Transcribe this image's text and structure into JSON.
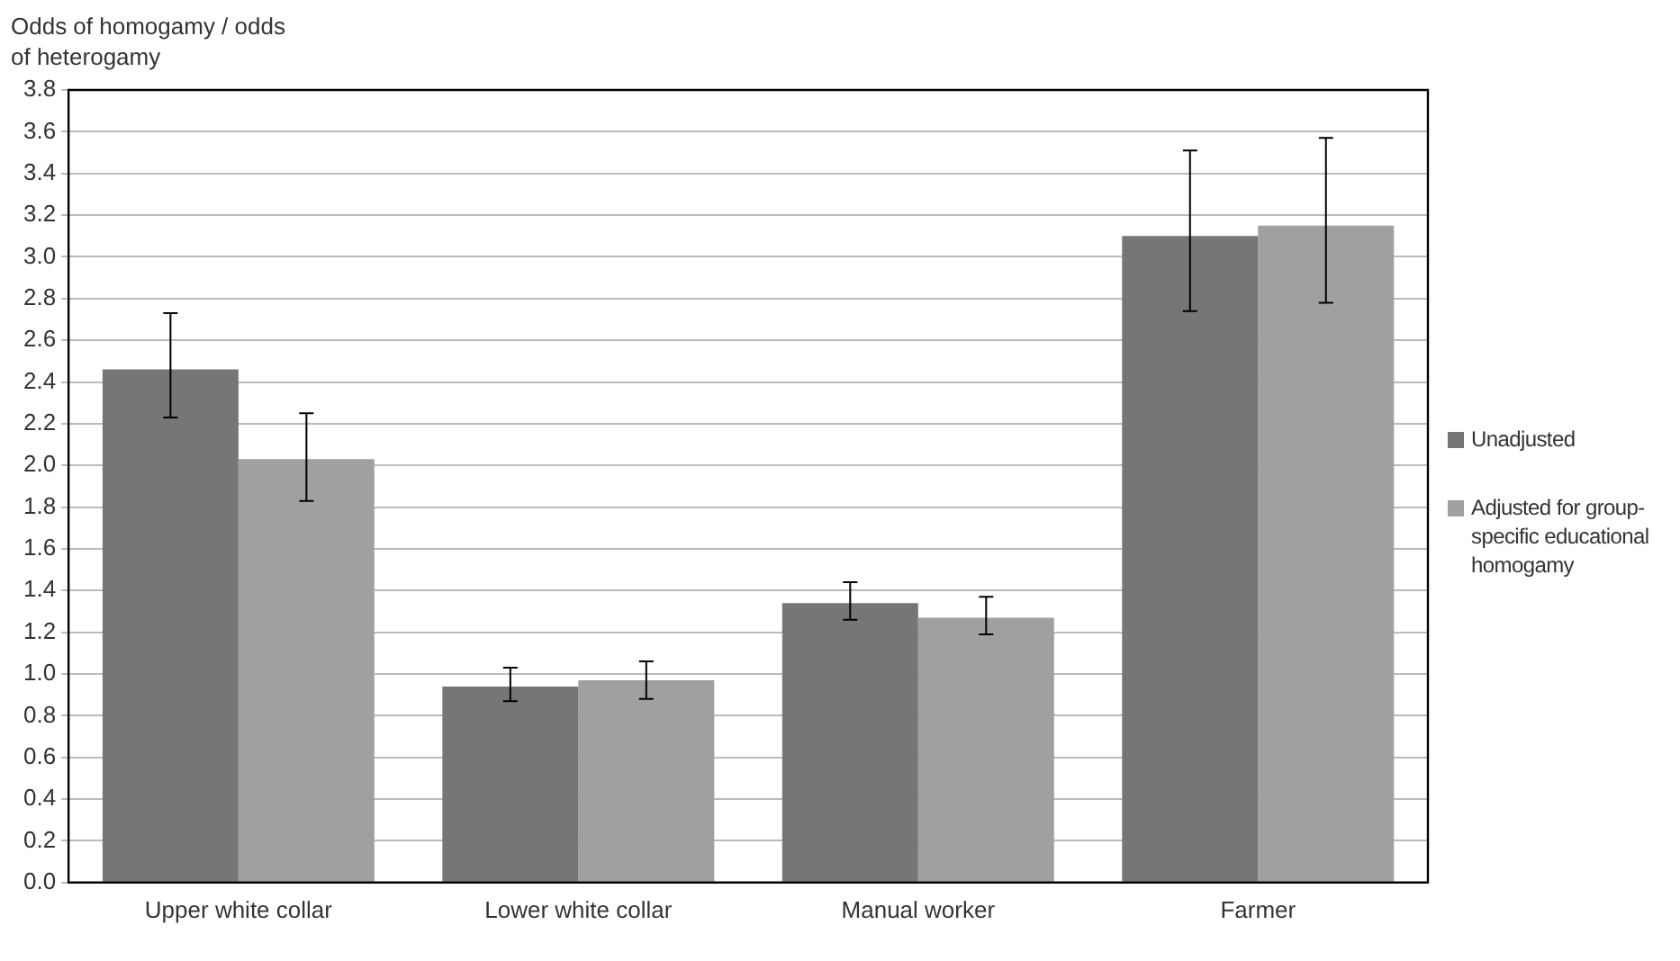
{
  "chart_data": {
    "type": "bar",
    "ylabel": "Odds of homogamy / odds of heterogamy",
    "categories": [
      "Upper white collar",
      "Lower white collar",
      "Manual worker",
      "Farmer"
    ],
    "series": [
      {
        "name": "Unadjusted",
        "color": "#767676",
        "values": [
          2.46,
          0.94,
          1.34,
          3.1
        ],
        "errors": [
          [
            2.23,
            2.73
          ],
          [
            0.87,
            1.03
          ],
          [
            1.26,
            1.44
          ],
          [
            2.74,
            3.51
          ]
        ]
      },
      {
        "name": "Adjusted for group-specific educational homogamy",
        "color": "#a0a0a0",
        "values": [
          2.03,
          0.97,
          1.27,
          3.15
        ],
        "errors": [
          [
            1.83,
            2.25
          ],
          [
            0.88,
            1.06
          ],
          [
            1.19,
            1.37
          ],
          [
            2.78,
            3.57
          ]
        ]
      }
    ],
    "ylim": [
      0,
      3.8
    ],
    "yticks": [
      {
        "value": 0,
        "label": "0.0"
      },
      0.2,
      0.4,
      0.6,
      0.8,
      {
        "value": 1,
        "label": "1.0"
      },
      1.2,
      1.4,
      1.6,
      1.8,
      {
        "value": 2,
        "label": "2.0"
      },
      2.2,
      2.4,
      2.6,
      2.8,
      {
        "value": 3,
        "label": "3.0"
      },
      3.2,
      3.4,
      3.6,
      3.8
    ],
    "grid": "y",
    "legend": "right"
  }
}
